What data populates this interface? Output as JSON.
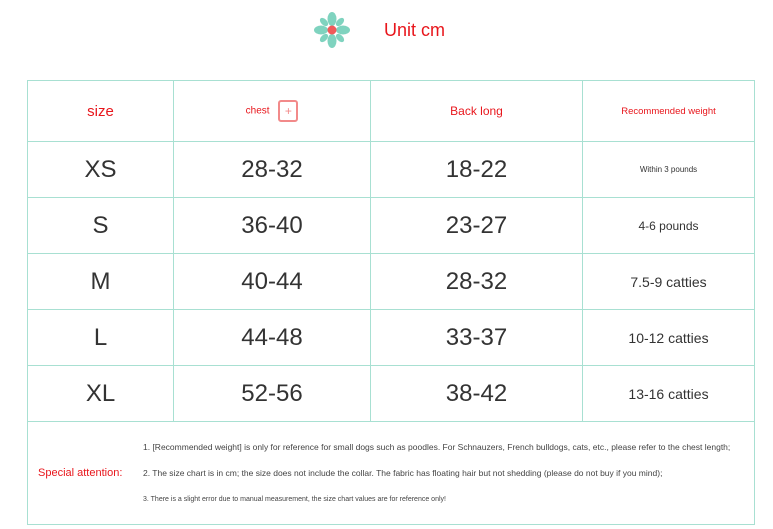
{
  "header": {
    "unit": "Unit cm",
    "flower_color": "#7fd3bf",
    "center_color": "#f05a5a"
  },
  "table": {
    "columns": [
      "size",
      "chest",
      "Back long",
      "Recommended weight"
    ],
    "rows": [
      [
        "XS",
        "28-32",
        "18-22",
        "Within 3 pounds"
      ],
      [
        "S",
        "36-40",
        "23-27",
        "4-6 pounds"
      ],
      [
        "M",
        "40-44",
        "28-32",
        "7.5-9 catties"
      ],
      [
        "L",
        "44-48",
        "33-37",
        "10-12 catties"
      ],
      [
        "XL",
        "52-56",
        "38-42",
        "13-16 catties"
      ]
    ]
  },
  "notes": {
    "label": "Special attention:",
    "items": [
      "1. [Recommended weight] is only for reference for small dogs such as poodles. For Schnauzers, French bulldogs, cats, etc., please refer to the chest length;",
      "2. The size chart is in cm; the size does not include the collar. The fabric has floating hair but not shedding (please do not buy if you mind);",
      "3. There is a slight error due to manual measurement, the size chart values are for reference only!"
    ]
  }
}
